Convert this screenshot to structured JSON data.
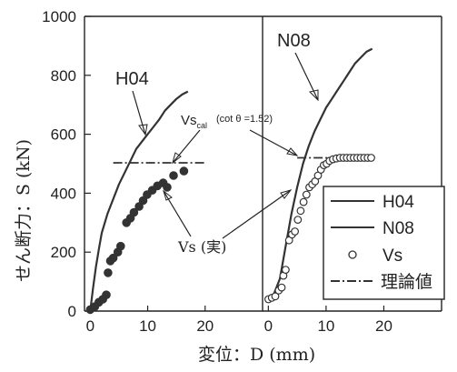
{
  "chart_data": [
    {
      "type": "line",
      "panel": "left",
      "xlim": [
        -1,
        30
      ],
      "ylim": [
        0,
        1000
      ],
      "xticks": [
        0,
        10,
        20
      ],
      "yticks": [
        0,
        200,
        400,
        600,
        800,
        1000
      ],
      "grid": false,
      "series": [
        {
          "name": "H04",
          "style": "solid",
          "points": [
            [
              0,
              0
            ],
            [
              0.5,
              80
            ],
            [
              1,
              150
            ],
            [
              1.5,
              210
            ],
            [
              2,
              265
            ],
            [
              3,
              330
            ],
            [
              4,
              380
            ],
            [
              5,
              430
            ],
            [
              6,
              470
            ],
            [
              7,
              510
            ],
            [
              8,
              550
            ],
            [
              9,
              575
            ],
            [
              10,
              600
            ],
            [
              11,
              625
            ],
            [
              12,
              650
            ],
            [
              13,
              680
            ],
            [
              14,
              700
            ],
            [
              15,
              720
            ],
            [
              16,
              735
            ],
            [
              17,
              745
            ]
          ]
        },
        {
          "name": "Vs",
          "style": "marker-filled",
          "points": [
            [
              0,
              5
            ],
            [
              0.8,
              15
            ],
            [
              1.5,
              30
            ],
            [
              2.2,
              40
            ],
            [
              2.8,
              55
            ],
            [
              3.1,
              130
            ],
            [
              3.5,
              170
            ],
            [
              4,
              180
            ],
            [
              4.8,
              200
            ],
            [
              5.3,
              220
            ],
            [
              6.3,
              300
            ],
            [
              7,
              315
            ],
            [
              7.6,
              335
            ],
            [
              8.5,
              355
            ],
            [
              9.2,
              375
            ],
            [
              9.9,
              395
            ],
            [
              10.8,
              410
            ],
            [
              11.7,
              425
            ],
            [
              12.7,
              435
            ],
            [
              13.4,
              420
            ],
            [
              14.5,
              460
            ],
            [
              16.3,
              475
            ]
          ]
        }
      ],
      "reference_lines": [
        {
          "name": "理論値",
          "style": "dash-dot",
          "y": 503,
          "x": [
            4,
            20
          ]
        }
      ]
    },
    {
      "type": "line",
      "panel": "right",
      "xlim": [
        -1,
        30
      ],
      "ylim": [
        0,
        1000
      ],
      "xticks": [
        0,
        10,
        20
      ],
      "yticks": [
        0,
        200,
        400,
        600,
        800,
        1000
      ],
      "grid": false,
      "series": [
        {
          "name": "N08",
          "style": "solid",
          "points": [
            [
              0,
              40
            ],
            [
              1,
              60
            ],
            [
              2,
              110
            ],
            [
              3,
              220
            ],
            [
              4,
              330
            ],
            [
              5,
              420
            ],
            [
              6,
              500
            ],
            [
              7,
              560
            ],
            [
              8,
              610
            ],
            [
              9,
              650
            ],
            [
              10,
              690
            ],
            [
              11,
              720
            ],
            [
              12,
              750
            ],
            [
              13,
              780
            ],
            [
              14,
              810
            ],
            [
              15,
              840
            ],
            [
              16,
              860
            ],
            [
              17,
              880
            ],
            [
              18,
              890
            ]
          ]
        },
        {
          "name": "Vs",
          "style": "marker-open",
          "points": [
            [
              0,
              40
            ],
            [
              0.6,
              45
            ],
            [
              1.2,
              50
            ],
            [
              1.8,
              70
            ],
            [
              2.3,
              80
            ],
            [
              2.6,
              120
            ],
            [
              3,
              140
            ],
            [
              3.6,
              240
            ],
            [
              4.1,
              260
            ],
            [
              4.6,
              270
            ],
            [
              5.1,
              310
            ],
            [
              5.6,
              340
            ],
            [
              6.1,
              370
            ],
            [
              6.6,
              395
            ],
            [
              7.1,
              420
            ],
            [
              7.6,
              430
            ],
            [
              8.1,
              440
            ],
            [
              8.6,
              460
            ],
            [
              9.1,
              480
            ],
            [
              9.6,
              495
            ],
            [
              10.1,
              500
            ],
            [
              10.6,
              510
            ],
            [
              11.2,
              515
            ],
            [
              11.8,
              518
            ],
            [
              12.4,
              520
            ],
            [
              13,
              520
            ],
            [
              13.6,
              520
            ],
            [
              14.2,
              520
            ],
            [
              14.8,
              520
            ],
            [
              15.4,
              520
            ],
            [
              16,
              520
            ],
            [
              16.6,
              520
            ],
            [
              17.2,
              520
            ],
            [
              17.8,
              520
            ]
          ]
        }
      ],
      "reference_lines": [
        {
          "name": "理論値",
          "style": "dash-dot",
          "y": 520,
          "x": [
            5,
            18
          ]
        }
      ]
    }
  ],
  "labels": {
    "ylabel": "せん断力：S (kN)",
    "xlabel": "変位：D (mm)",
    "series_label_h04": "H04",
    "series_label_n08": "N08",
    "vs_cal_main": "Vs",
    "vs_cal_sub": "cal",
    "vs_cal_note": "(cot θ =1.52)",
    "vs_exp": "Vs (実)"
  },
  "legend": {
    "position": "right-middle",
    "items": [
      {
        "label": "H04",
        "symbol": "solid-line"
      },
      {
        "label": "N08",
        "symbol": "solid-line"
      },
      {
        "label": "Vs",
        "symbol": "open-circle"
      },
      {
        "label": "理論値",
        "symbol": "dash-dot-line"
      }
    ]
  },
  "colors": {
    "ink": "#222222",
    "line": "#333333"
  }
}
